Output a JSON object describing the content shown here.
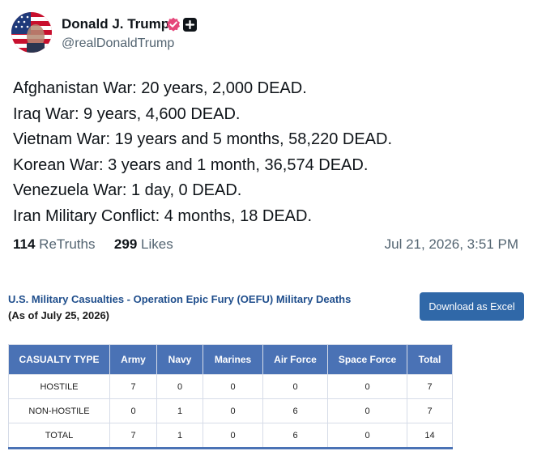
{
  "post": {
    "display_name": "Donald J. Trump",
    "handle": "@realDonaldTrump",
    "lines": [
      "Afghanistan War: 20 years, 2,000 DEAD.",
      "Iraq War: 9 years, 4,600 DEAD.",
      "Vietnam War: 19 years and 5 months, 58,220 DEAD.",
      "Korean War: 3 years and 1 month, 36,574 DEAD.",
      "Venezuela War: 1 day, 0 DEAD.",
      "Iran Military Conflict: 4 months, 18 DEAD."
    ],
    "retruths_count": "114",
    "retruths_label": "ReTruths",
    "likes_count": "299",
    "likes_label": "Likes",
    "timestamp": "Jul 21, 2026, 3:51 PM",
    "icons": {
      "avatar": "flag-avatar",
      "verified": "verified-badge-icon",
      "plus": "plus-icon"
    },
    "colors": {
      "verified": "#e5467a",
      "accent_text": "#536471"
    }
  },
  "casualties": {
    "title": "U.S. Military Casualties - Operation Epic Fury (OEFU) Military Deaths",
    "subtitle": "(As of July 25, 2026)",
    "download_label": "Download as Excel",
    "columns": [
      "CASUALTY TYPE",
      "Army",
      "Navy",
      "Marines",
      "Air Force",
      "Space Force",
      "Total"
    ],
    "rows": [
      [
        "HOSTILE",
        "7",
        "0",
        "0",
        "0",
        "0",
        "7"
      ],
      [
        "NON-HOSTILE",
        "0",
        "1",
        "0",
        "6",
        "0",
        "7"
      ],
      [
        "TOTAL",
        "7",
        "1",
        "0",
        "6",
        "0",
        "14"
      ]
    ],
    "colors": {
      "header_bg": "#4a72b5",
      "button_bg": "#3068a8",
      "title": "#1f4e8c"
    }
  }
}
